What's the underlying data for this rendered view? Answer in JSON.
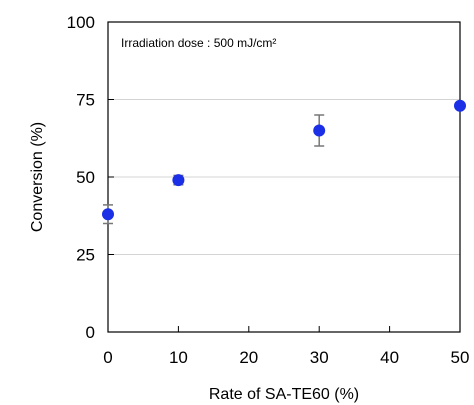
{
  "chart_data": {
    "type": "scatter",
    "title": "",
    "xlabel": "Rate of SA-TE60 (%)",
    "ylabel": "Conversion (%)",
    "annotation": "Irradiation dose : 500 mJ/cm²",
    "xlim": [
      0,
      50
    ],
    "ylim": [
      0,
      100
    ],
    "xticks": [
      0,
      10,
      20,
      30,
      40,
      50
    ],
    "yticks": [
      0,
      25,
      50,
      75,
      100
    ],
    "grid": "horizontal",
    "legend": "none",
    "marker_color": "#1a2fe6",
    "errorbar_color": "#777777",
    "series": [
      {
        "x": [
          0,
          10,
          30,
          50
        ],
        "y": [
          38,
          49,
          65,
          73
        ],
        "error": [
          3,
          1.5,
          5,
          0
        ]
      }
    ]
  }
}
